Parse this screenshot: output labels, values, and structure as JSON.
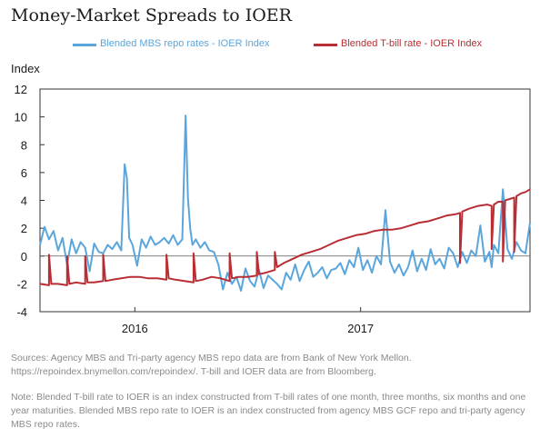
{
  "title": "Money-Market Spreads to IOER",
  "sources": "Sources: Agency MBS and Tri-party agency MBS repo data are from Bank of New York Mellon. https://repoindex.bnymellon.com/repoindex/. T-bill and IOER data are from Bloomberg.",
  "note": "Note: Blended T-bill rate to IOER is an index constructed from T-bill rates of one month, three months, six months and one year maturities. Blended MBS repo rate to IOER is an index constructed from agency MBS GCF repo and tri-party agency MBS repo rates.",
  "chart_data": {
    "type": "line",
    "title": "Money-Market Spreads to IOER",
    "ylabel": "Index",
    "xlabel": "",
    "ylim": [
      -4,
      12
    ],
    "yticks": [
      -4,
      -2,
      0,
      2,
      4,
      6,
      8,
      10,
      12
    ],
    "xlim": [
      2015.58,
      2017.75
    ],
    "xticks": [
      {
        "label": "2016",
        "x": 2016.0
      },
      {
        "label": "2017",
        "x": 2017.0
      }
    ],
    "grid": false,
    "legend": "top",
    "series": [
      {
        "name": "Blended MBS repo rates - IOER Index",
        "color": "#5aa6dc",
        "x": [
          2015.58,
          2015.6,
          2015.62,
          2015.64,
          2015.66,
          2015.68,
          2015.7,
          2015.72,
          2015.74,
          2015.76,
          2015.78,
          2015.8,
          2015.82,
          2015.84,
          2015.86,
          2015.88,
          2015.9,
          2015.92,
          2015.94,
          2015.955,
          2015.965,
          2015.975,
          2015.99,
          2016.01,
          2016.03,
          2016.05,
          2016.07,
          2016.09,
          2016.11,
          2016.13,
          2016.15,
          2016.17,
          2016.19,
          2016.21,
          2016.225,
          2016.235,
          2016.245,
          2016.255,
          2016.27,
          2016.29,
          2016.31,
          2016.33,
          2016.35,
          2016.37,
          2016.39,
          2016.41,
          2016.43,
          2016.45,
          2016.47,
          2016.49,
          2016.51,
          2016.53,
          2016.55,
          2016.57,
          2016.59,
          2016.61,
          2016.63,
          2016.65,
          2016.67,
          2016.69,
          2016.71,
          2016.73,
          2016.75,
          2016.77,
          2016.79,
          2016.81,
          2016.83,
          2016.85,
          2016.87,
          2016.89,
          2016.91,
          2016.93,
          2016.95,
          2016.97,
          2016.99,
          2017.01,
          2017.03,
          2017.05,
          2017.07,
          2017.09,
          2017.11,
          2017.13,
          2017.15,
          2017.17,
          2017.19,
          2017.21,
          2017.23,
          2017.25,
          2017.27,
          2017.29,
          2017.31,
          2017.33,
          2017.35,
          2017.37,
          2017.39,
          2017.41,
          2017.43,
          2017.45,
          2017.47,
          2017.49,
          2017.51,
          2017.53,
          2017.55,
          2017.57,
          2017.58,
          2017.59,
          2017.61,
          2017.63,
          2017.65,
          2017.67,
          2017.69,
          2017.71,
          2017.73,
          2017.75
        ],
        "y": [
          0.8,
          2.1,
          1.2,
          1.8,
          0.4,
          1.3,
          -0.6,
          1.2,
          0.2,
          1.0,
          0.6,
          -1.1,
          0.9,
          0.3,
          0.2,
          0.8,
          0.5,
          1.0,
          0.4,
          6.6,
          5.6,
          1.3,
          0.8,
          -0.7,
          1.2,
          0.6,
          1.4,
          0.8,
          1.0,
          1.3,
          0.9,
          1.5,
          0.8,
          1.2,
          10.1,
          4.2,
          2.0,
          0.8,
          1.2,
          0.6,
          1.0,
          0.4,
          0.3,
          -0.6,
          -2.4,
          -1.2,
          -2.0,
          -1.5,
          -2.5,
          -0.9,
          -1.8,
          -2.2,
          -1.0,
          -2.3,
          -1.4,
          -1.7,
          -2.0,
          -2.4,
          -1.2,
          -1.7,
          -0.6,
          -1.8,
          -1.0,
          -0.4,
          -1.5,
          -1.2,
          -0.8,
          -1.6,
          -1.0,
          -0.9,
          -0.5,
          -1.3,
          -0.3,
          -0.8,
          0.6,
          -1.0,
          -0.3,
          -1.2,
          0.0,
          -0.6,
          3.3,
          -0.4,
          -1.2,
          -0.6,
          -1.4,
          -0.8,
          0.4,
          -1.1,
          -0.2,
          -1.0,
          0.5,
          -0.6,
          -0.2,
          -0.9,
          0.6,
          0.2,
          -0.8,
          0.3,
          -0.5,
          0.4,
          0.0,
          2.2,
          -0.4,
          0.3,
          -0.8,
          0.8,
          0.2,
          4.8,
          0.5,
          -0.2,
          1.0,
          0.4,
          0.2,
          2.4
        ]
      },
      {
        "name": "Blended T-bill rate - IOER Index",
        "color": "#b82e34",
        "x": [
          2015.58,
          2015.62,
          2015.62,
          2015.63,
          2015.66,
          2015.7,
          2015.7,
          2015.71,
          2015.74,
          2015.78,
          2015.78,
          2015.79,
          2015.82,
          2015.86,
          2015.86,
          2015.87,
          2015.9,
          2015.94,
          2015.98,
          2016.02,
          2016.06,
          2016.1,
          2016.14,
          2016.14,
          2016.15,
          2016.18,
          2016.22,
          2016.26,
          2016.26,
          2016.27,
          2016.3,
          2016.34,
          2016.38,
          2016.42,
          2016.42,
          2016.43,
          2016.46,
          2016.5,
          2016.54,
          2016.54,
          2016.55,
          2016.58,
          2016.62,
          2016.62,
          2016.63,
          2016.66,
          2016.7,
          2016.74,
          2016.78,
          2016.82,
          2016.86,
          2016.9,
          2016.94,
          2016.98,
          2017.02,
          2017.06,
          2017.1,
          2017.14,
          2017.18,
          2017.22,
          2017.26,
          2017.3,
          2017.34,
          2017.38,
          2017.42,
          2017.44,
          2017.44,
          2017.45,
          2017.48,
          2017.52,
          2017.56,
          2017.58,
          2017.58,
          2017.59,
          2017.61,
          2017.63,
          2017.63,
          2017.64,
          2017.66,
          2017.68,
          2017.68,
          2017.69,
          2017.71,
          2017.73,
          2017.75
        ],
        "y": [
          -2.0,
          -2.1,
          0.1,
          -2.0,
          -2.0,
          -2.1,
          0.0,
          -2.0,
          -1.9,
          -2.0,
          0.0,
          -1.9,
          -1.9,
          -1.8,
          0.1,
          -1.8,
          -1.7,
          -1.6,
          -1.5,
          -1.5,
          -1.6,
          -1.6,
          -1.7,
          0.1,
          -1.6,
          -1.7,
          -1.8,
          -1.9,
          0.2,
          -1.8,
          -1.7,
          -1.5,
          -1.6,
          -1.8,
          0.2,
          -1.6,
          -1.5,
          -1.5,
          -1.4,
          0.3,
          -1.3,
          -1.2,
          -1.0,
          0.3,
          -0.8,
          -0.5,
          -0.2,
          0.1,
          0.3,
          0.5,
          0.8,
          1.1,
          1.3,
          1.5,
          1.6,
          1.8,
          1.9,
          1.9,
          2.0,
          2.2,
          2.4,
          2.5,
          2.7,
          2.9,
          3.0,
          3.1,
          -0.5,
          3.2,
          3.4,
          3.6,
          3.7,
          3.6,
          0.5,
          3.7,
          3.9,
          3.9,
          -0.4,
          4.0,
          4.1,
          4.2,
          0.3,
          4.3,
          4.5,
          4.6,
          4.8
        ]
      }
    ]
  }
}
